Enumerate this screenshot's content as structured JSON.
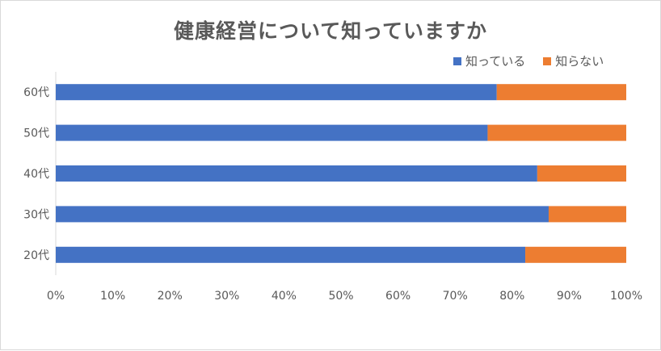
{
  "chart_data": {
    "type": "bar",
    "orientation": "horizontal",
    "stacking": "percent",
    "title": "健康経営について知っていますか",
    "categories": [
      "60代",
      "50代",
      "40代",
      "30代",
      "20代"
    ],
    "series": [
      {
        "name": "知っている",
        "color": "#4472c4",
        "values": [
          77.3,
          75.7,
          84.4,
          86.4,
          82.3
        ]
      },
      {
        "name": "知らない",
        "color": "#ed7d31",
        "values": [
          22.7,
          24.3,
          15.6,
          13.6,
          17.7
        ]
      }
    ],
    "x_ticks": [
      "0%",
      "10%",
      "20%",
      "30%",
      "40%",
      "50%",
      "60%",
      "70%",
      "80%",
      "90%",
      "100%"
    ],
    "xlim": [
      0,
      100
    ],
    "grid": false,
    "legend_position": "top-right"
  }
}
